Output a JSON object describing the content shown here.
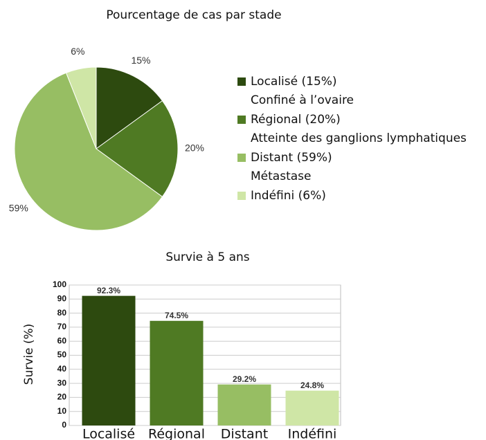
{
  "chart_data": [
    {
      "type": "pie",
      "title": "Pourcentage de cas par stade",
      "categories": [
        "Localisé (15%)",
        "Régional (20%)",
        "Distant (59%)",
        "Indéfini (6%)"
      ],
      "legend_notes": [
        "Confiné à l’ovaire",
        "Atteinte des ganglions lymphatiques",
        "Métastase",
        null
      ],
      "values": [
        15,
        20,
        59,
        6
      ],
      "value_labels": [
        "15%",
        "20%",
        "59%",
        "6%"
      ],
      "colors": [
        "#2d4a0f",
        "#4f7a23",
        "#97be63",
        "#cfe6a6"
      ]
    },
    {
      "type": "bar",
      "title": "Survie à 5 ans",
      "y_label": "Survie (%)",
      "categories": [
        "Localisé",
        "Régional",
        "Distant",
        "Indéfini"
      ],
      "values": [
        92.3,
        74.5,
        29.2,
        24.8
      ],
      "value_labels": [
        "92.3%",
        "74.5%",
        "29.2%",
        "24.8%"
      ],
      "colors": [
        "#2d4a0f",
        "#4f7a23",
        "#97be63",
        "#cfe6a6"
      ],
      "ylim": [
        0,
        100
      ],
      "yticks": [
        0,
        10,
        20,
        30,
        40,
        50,
        60,
        70,
        80,
        90,
        100
      ],
      "grid": true
    }
  ]
}
